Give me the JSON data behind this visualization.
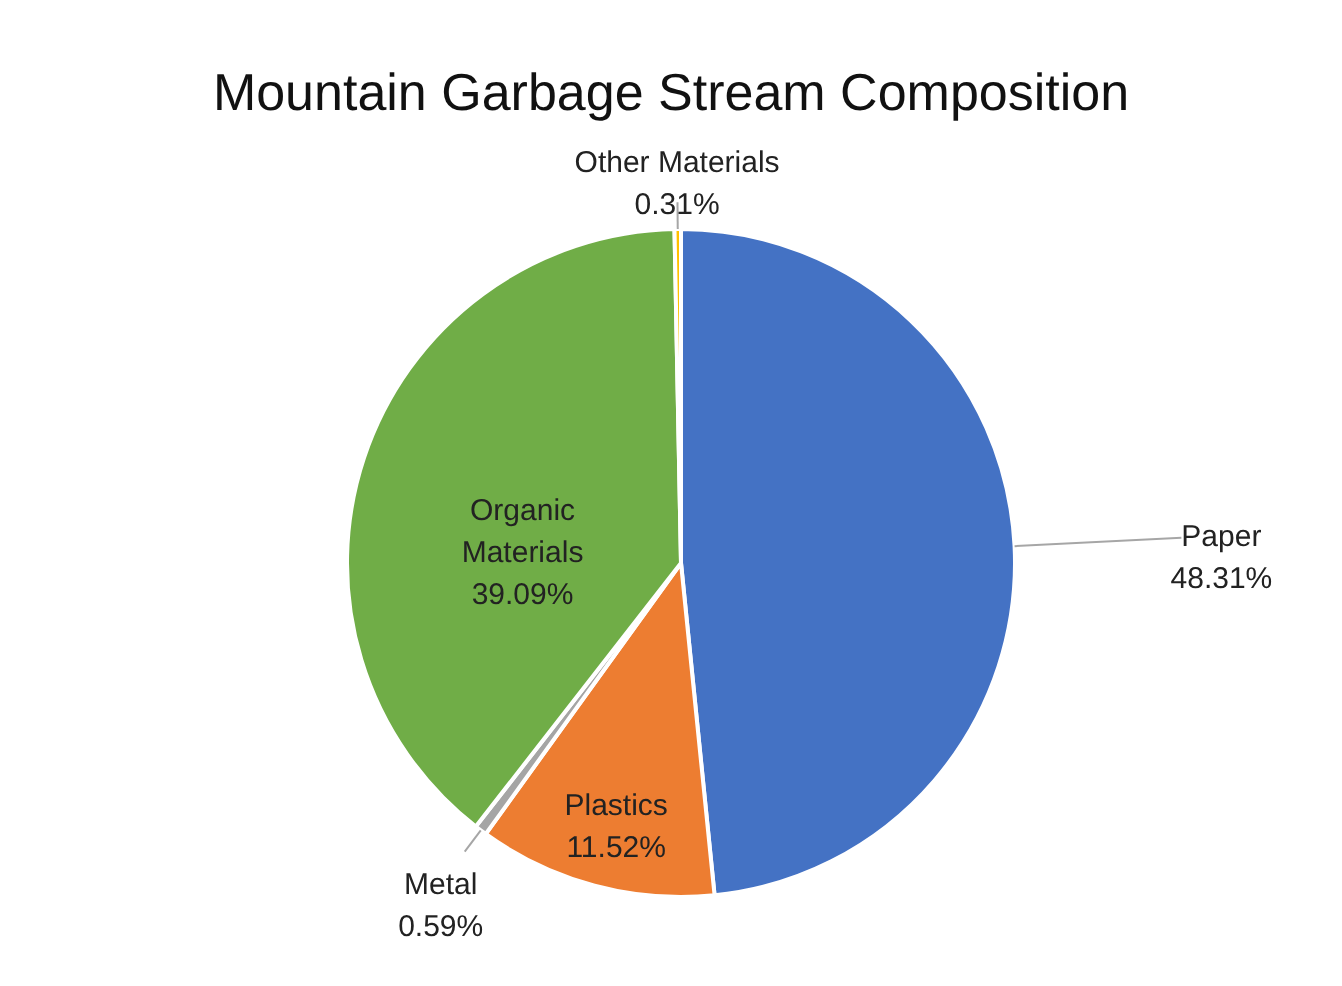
{
  "chart_data": {
    "type": "pie",
    "title": "Mountain Garbage Stream Composition",
    "categories": [
      "Paper",
      "Plastics",
      "Metal",
      "Organic Materials",
      "Other Materials"
    ],
    "values": [
      48.31,
      11.52,
      0.59,
      39.09,
      0.31
    ],
    "colors": [
      "#4472c4",
      "#ed7d31",
      "#a5a5a5",
      "#70ad47",
      "#ffc000"
    ],
    "value_labels": [
      "48.31%",
      "11.52%",
      "0.59%",
      "39.09%",
      "0.31%"
    ]
  }
}
